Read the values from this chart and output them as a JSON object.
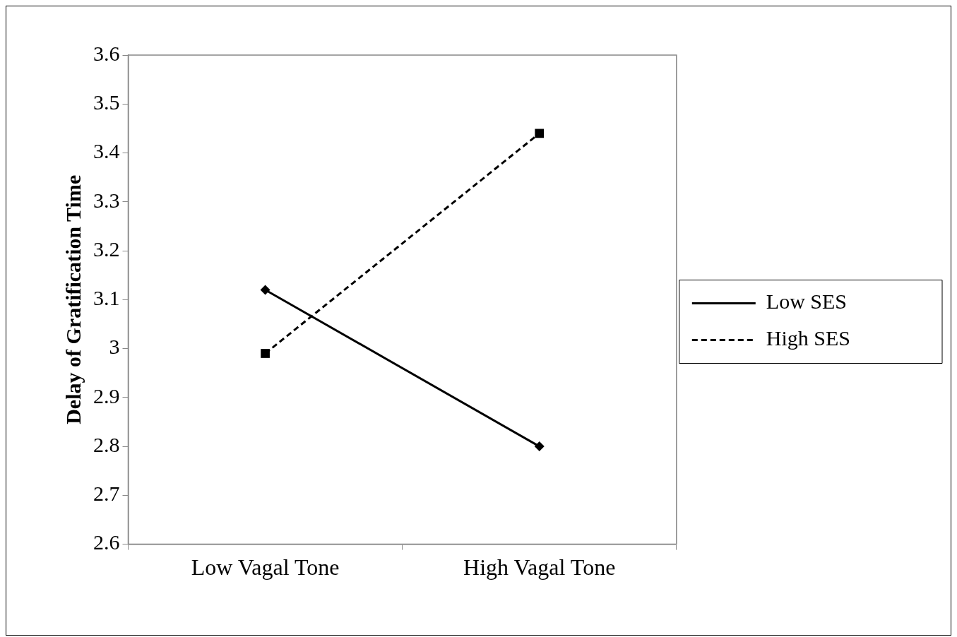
{
  "chart_data": {
    "type": "line",
    "ylabel": "Delay of Gratification Time",
    "categories": [
      "Low Vagal Tone",
      "High Vagal Tone"
    ],
    "series": [
      {
        "name": "Low SES",
        "color": "#000000",
        "values": [
          3.12,
          2.8
        ],
        "marker": "diamond",
        "line_style": "solid"
      },
      {
        "name": "High SES",
        "color": "#000000",
        "values": [
          2.99,
          3.44
        ],
        "marker": "square",
        "line_style": "dashed"
      }
    ],
    "ylim": [
      2.6,
      3.6
    ],
    "yticks": [
      2.6,
      2.7,
      2.8,
      2.9,
      3,
      3.1,
      3.2,
      3.3,
      3.4,
      3.5,
      3.6
    ],
    "grid": false,
    "legend": "right"
  }
}
